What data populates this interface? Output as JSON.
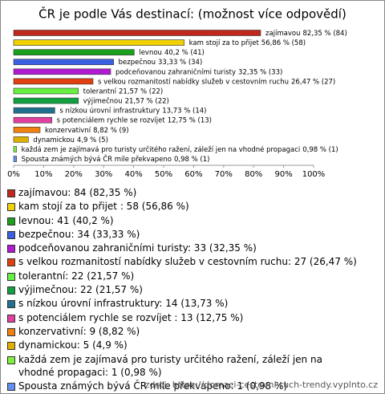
{
  "chart_data": {
    "type": "barh",
    "title": "ČR je podle Vás destinací: (možnost více odpovědí)",
    "categories": [
      "zajímavou",
      "kam stojí za to přijet",
      "levnou",
      "bezpečnou",
      "podceňovanou zahraničními turisty",
      "s velkou rozmanitostí nabídky služeb v cestovním ruchu",
      "tolerantní",
      "výjimečnou",
      "s nízkou úrovní infrastruktury",
      "s potenciálem rychle se rozvíjet",
      "konzervativní",
      "dynamickou",
      "každá zem je zajímavá pro turisty určitého ražení, záleží jen na vhodné propagaci",
      "Spousta známých bývá ČR mile překvapeno"
    ],
    "values": [
      82.35,
      56.86,
      40.2,
      33.33,
      32.35,
      26.47,
      21.57,
      21.57,
      13.73,
      12.75,
      8.82,
      4.9,
      0.98,
      0.98
    ],
    "value_labels": [
      "82,35 % (84)",
      "56,86 % (58)",
      "40,2 % (41)",
      "33,33 % (34)",
      "32,35 % (33)",
      "26,47 % (27)",
      "21,57 % (22)",
      "21,57 % (22)",
      "13,73 % (14)",
      "12,75 % (13)",
      "8,82 % (9)",
      "4,9 % (5)",
      "0,98 % (1)",
      "0,98 % (1)"
    ],
    "colors": [
      "#c0281e",
      "#f0d000",
      "#1aa01a",
      "#3a5fe0",
      "#b01ad0",
      "#e04010",
      "#66f040",
      "#10a040",
      "#207090",
      "#e040a0",
      "#f08010",
      "#e0b000",
      "#80f040",
      "#6090f0"
    ],
    "legend_labels": [
      "zajímavou: 84 (82,35 %)",
      "kam stojí za to přijet : 58 (56,86 %)",
      "levnou: 41 (40,2 %)",
      "bezpečnou: 34 (33,33 %)",
      "podceňovanou zahraničními turisty: 33 (32,35 %)",
      "s velkou rozmanitostí nabídky služeb v cestovním ruchu: 27 (26,47 %)",
      "tolerantní: 22 (21,57 %)",
      "výjimečnou: 22 (21,57 %)",
      "s nízkou úrovní infrastruktury: 14 (13,73 %)",
      "s potenciálem rychle se rozvíjet : 13 (12,75 %)",
      "konzervativní: 9 (8,82 %)",
      "dynamickou: 5 (4,9 %)",
      "každá zem je zajímavá pro turisty určitého ražení, záleží jen na vhodné propagaci: 1 (0,98 %)",
      "Spousta známých bývá ČR mile překvapeno: 1 (0,98 %)"
    ],
    "xlim": [
      0,
      100
    ],
    "xticks": [
      {
        "value": 0,
        "label": "0%"
      },
      {
        "value": 10,
        "label": "10%"
      },
      {
        "value": 20,
        "label": "20%"
      },
      {
        "value": 30,
        "label": "30%"
      },
      {
        "value": 40,
        "label": "40%"
      },
      {
        "value": 50,
        "label": "50%"
      },
      {
        "value": 60,
        "label": "60%"
      },
      {
        "value": 70,
        "label": "70%"
      },
      {
        "value": 80,
        "label": "80%"
      },
      {
        "value": 90,
        "label": "90%"
      },
      {
        "value": 100,
        "label": "100%"
      }
    ],
    "source": "zdroj: https://domaci-cestovni-ruch-trendy.vyplnto.cz"
  }
}
